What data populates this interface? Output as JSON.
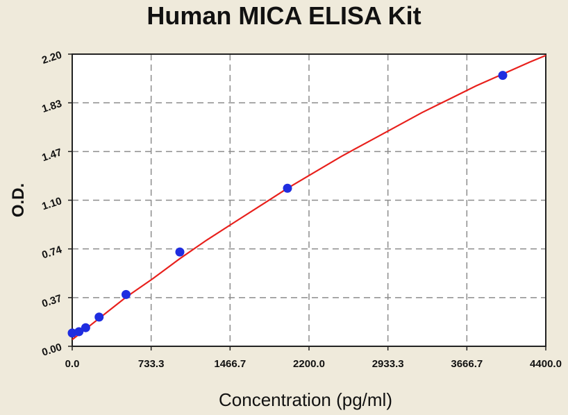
{
  "chart_data": {
    "type": "scatter",
    "title": "Human MICA ELISA Kit",
    "xlabel": "Concentration (pg/ml)",
    "ylabel": "O.D.",
    "xlim": [
      0,
      4400
    ],
    "ylim": [
      0,
      2.2
    ],
    "x_ticks": [
      "0.0",
      "733.3",
      "1466.7",
      "2200.0",
      "2933.3",
      "3666.7",
      "4400.0"
    ],
    "y_ticks": [
      "0.00",
      "0.37",
      "0.74",
      "1.10",
      "1.47",
      "1.83",
      "2.20"
    ],
    "grid": true,
    "series": [
      {
        "type": "scatter",
        "x": [
          0,
          62.5,
          125,
          250,
          500,
          1000,
          2000,
          4000
        ],
        "y": [
          0.1,
          0.11,
          0.14,
          0.22,
          0.39,
          0.71,
          1.19,
          2.04
        ]
      },
      {
        "type": "line",
        "x": [
          0,
          125,
          250,
          500,
          750,
          1000,
          1250,
          1500,
          1750,
          2000,
          2250,
          2500,
          2750,
          3000,
          3250,
          3500,
          3750,
          4000,
          4250,
          4400
        ],
        "y": [
          0.05,
          0.13,
          0.21,
          0.37,
          0.51,
          0.66,
          0.8,
          0.93,
          1.06,
          1.19,
          1.31,
          1.43,
          1.54,
          1.65,
          1.76,
          1.86,
          1.96,
          2.05,
          2.14,
          2.19
        ]
      }
    ],
    "colors": {
      "points": "#1f2de0",
      "curve": "#e8201c",
      "grid": "#8c8c8c",
      "plot_bg": "#ffffff",
      "page_bg": "#efeadb"
    }
  }
}
